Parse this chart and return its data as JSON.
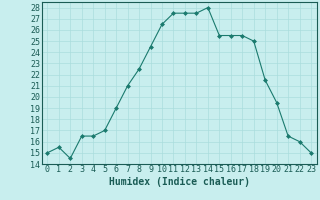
{
  "x": [
    0,
    1,
    2,
    3,
    4,
    5,
    6,
    7,
    8,
    9,
    10,
    11,
    12,
    13,
    14,
    15,
    16,
    17,
    18,
    19,
    20,
    21,
    22,
    23
  ],
  "y": [
    15,
    15.5,
    14.5,
    16.5,
    16.5,
    17,
    19,
    21,
    22.5,
    24.5,
    26.5,
    27.5,
    27.5,
    27.5,
    28,
    25.5,
    25.5,
    25.5,
    25,
    21.5,
    19.5,
    16.5,
    16,
    15
  ],
  "xlabel": "Humidex (Indice chaleur)",
  "xlim": [
    -0.5,
    23.5
  ],
  "ylim": [
    14,
    28.5
  ],
  "yticks": [
    14,
    15,
    16,
    17,
    18,
    19,
    20,
    21,
    22,
    23,
    24,
    25,
    26,
    27,
    28
  ],
  "xticks": [
    0,
    1,
    2,
    3,
    4,
    5,
    6,
    7,
    8,
    9,
    10,
    11,
    12,
    13,
    14,
    15,
    16,
    17,
    18,
    19,
    20,
    21,
    22,
    23
  ],
  "line_color": "#1a7a6e",
  "marker_color": "#1a7a6e",
  "bg_color": "#c8eeee",
  "grid_color": "#aadddd",
  "label_color": "#1a5c55",
  "tick_label_fontsize": 6,
  "xlabel_fontsize": 7
}
